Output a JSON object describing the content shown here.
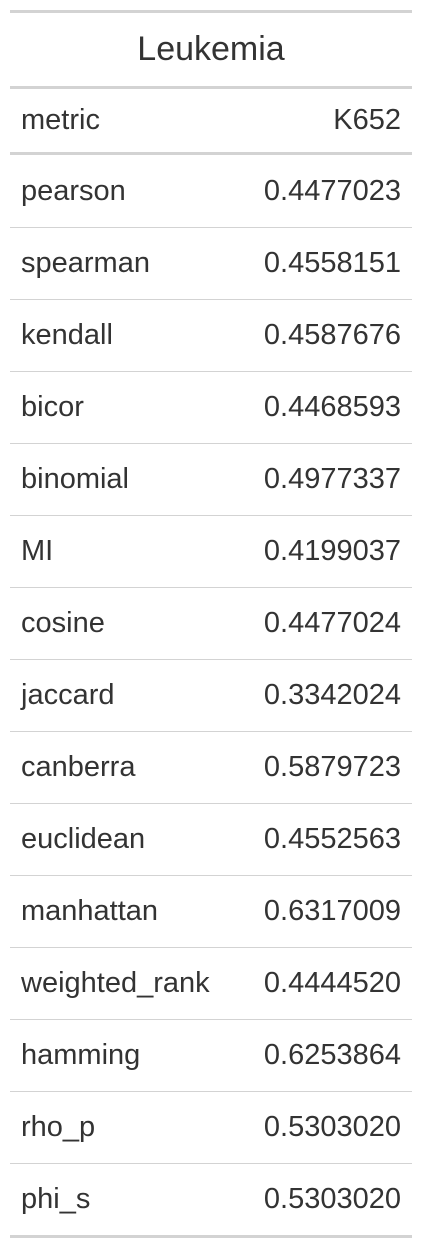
{
  "table": {
    "title": "Leukemia",
    "columns": [
      "metric",
      "K652"
    ],
    "rows": [
      {
        "metric": "pearson",
        "value": "0.4477023"
      },
      {
        "metric": "spearman",
        "value": "0.4558151"
      },
      {
        "metric": "kendall",
        "value": "0.4587676"
      },
      {
        "metric": "bicor",
        "value": "0.4468593"
      },
      {
        "metric": "binomial",
        "value": "0.4977337"
      },
      {
        "metric": "MI",
        "value": "0.4199037"
      },
      {
        "metric": "cosine",
        "value": "0.4477024"
      },
      {
        "metric": "jaccard",
        "value": "0.3342024"
      },
      {
        "metric": "canberra",
        "value": "0.5879723"
      },
      {
        "metric": "euclidean",
        "value": "0.4552563"
      },
      {
        "metric": "manhattan",
        "value": "0.6317009"
      },
      {
        "metric": "weighted_rank",
        "value": "0.4444520"
      },
      {
        "metric": "hamming",
        "value": "0.6253864"
      },
      {
        "metric": "rho_p",
        "value": "0.5303020"
      },
      {
        "metric": "phi_s",
        "value": "0.5303020"
      }
    ]
  }
}
